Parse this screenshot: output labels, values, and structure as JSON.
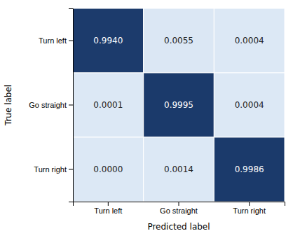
{
  "chart_data": {
    "type": "heatmap",
    "x": [
      "Turn left",
      "Go straight",
      "Turn right"
    ],
    "y": [
      "Turn left",
      "Go straight",
      "Turn right"
    ],
    "xlabel": "Predicted label",
    "ylabel": "True label",
    "values": [
      [
        0.994,
        0.0055,
        0.0004
      ],
      [
        0.0001,
        0.9995,
        0.0004
      ],
      [
        0.0,
        0.0014,
        0.9986
      ]
    ],
    "value_labels": [
      [
        "0.9940",
        "0.0055",
        "0.0004"
      ],
      [
        "0.0001",
        "0.9995",
        "0.0004"
      ],
      [
        "0.0000",
        "0.0014",
        "0.9986"
      ]
    ],
    "zlim": [
      0,
      1
    ],
    "colors": [
      "#dce8f5",
      "#1b3a6b"
    ],
    "data_labels": true
  }
}
